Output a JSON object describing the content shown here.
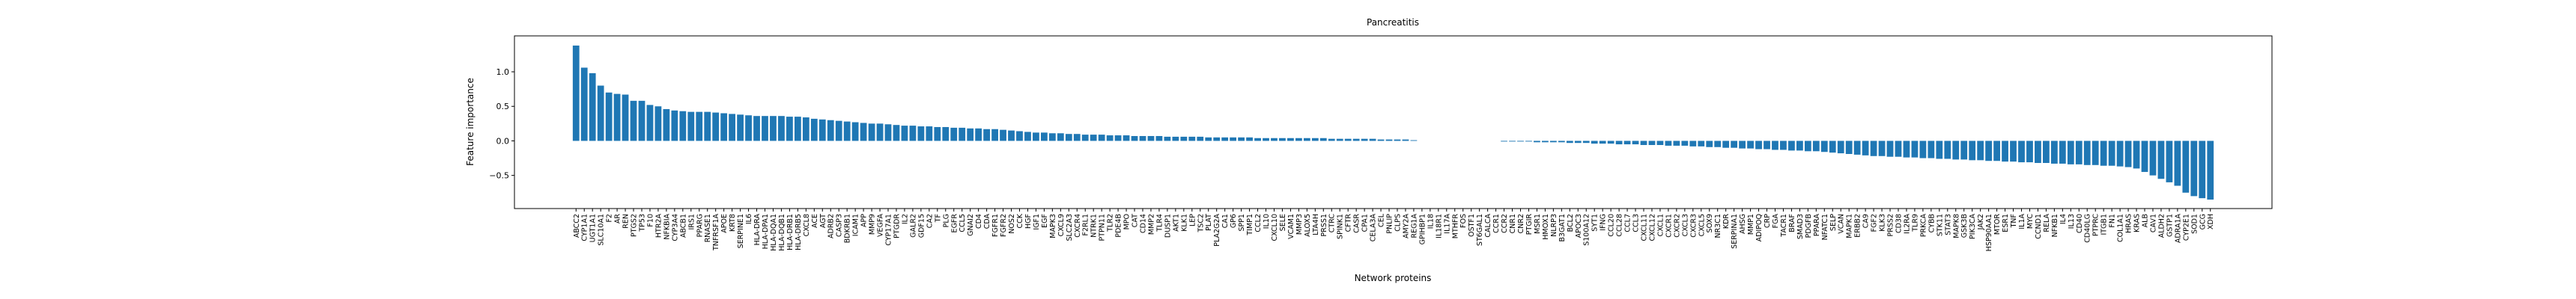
{
  "chart_data": {
    "type": "bar",
    "title": "Pancreatitis",
    "xlabel": "Network proteins",
    "ylabel": "Feature importance",
    "color": "#1f77b4",
    "categories": [
      "ABCC2",
      "CYP1A1",
      "UGT1A1",
      "SLC10A1",
      "F2",
      "AR",
      "REN",
      "PTGS2",
      "TP53",
      "F10",
      "HTR2A",
      "NFKBIA",
      "CYP3A4",
      "ABCB1",
      "IRS1",
      "PPARG",
      "RNASE1",
      "TNFRSF1A",
      "APOE",
      "KRT8",
      "SERPINE1",
      "IL6",
      "HLA-DRA",
      "HLA-DPA1",
      "HLA-DQA1",
      "HLA-DQB1",
      "HLA-DRB1",
      "HLA-DRB5",
      "CXCL8",
      "ACE",
      "AGT",
      "ADRB2",
      "CASP3",
      "BDKRB1",
      "ICAM1",
      "APP",
      "MMP9",
      "VEGFA",
      "CYP17A1",
      "PTGDR",
      "IL2",
      "GALR2",
      "GDF15",
      "CA2",
      "TF",
      "PLG",
      "EGFR",
      "CCL5",
      "GNAI2",
      "CD4",
      "CDA",
      "FGFR1",
      "FGFR2",
      "NOS2",
      "CCK",
      "HGF",
      "IGF1",
      "EGF",
      "MAPK3",
      "CXCL9",
      "SLC2A3",
      "CXCR4",
      "F2RL1",
      "NTRK1",
      "PTPN11",
      "TLR2",
      "PDE4B",
      "MPO",
      "CAT",
      "CD14",
      "MMP2",
      "TLR4",
      "DUSP1",
      "AKT1",
      "KLK1",
      "LEP",
      "TSC2",
      "PLAT",
      "PLA2G2A",
      "CA1",
      "GP6",
      "SPP1",
      "TIMP1",
      "CCL2",
      "IL10",
      "CXCL10",
      "SELE",
      "VCAM1",
      "MMP3",
      "ALOX5",
      "LTA4H",
      "PRSS1",
      "CTRC",
      "SPINK1",
      "CFTR",
      "CASR",
      "CPA1",
      "CELA3A",
      "CEL",
      "PNLIP",
      "CLPS",
      "AMY2A",
      "REG1A",
      "GPIHBP1",
      "IL18",
      "IL18R1",
      "IL17A",
      "MTHFR",
      "FOS",
      "OSTF1",
      "ST6GAL1",
      "CALCA",
      "CCR1",
      "CCR2",
      "CNR1",
      "CNR2",
      "PTGIR",
      "MSR1",
      "HMOX1",
      "NLRP3",
      "B3GAT1",
      "BCL2",
      "APOC3",
      "S100A12",
      "SYT1",
      "IFNG",
      "CCL20",
      "CCL28",
      "CCL7",
      "CCL3",
      "CXCL11",
      "CXCL12",
      "CXCL1",
      "CXCR1",
      "CXCR2",
      "CXCL3",
      "CXCR3",
      "CXCL5",
      "SOX9",
      "NR3C1",
      "KDR",
      "SERPINA1",
      "AHSG",
      "MMP1",
      "ADIPOQ",
      "CRP",
      "FGA",
      "TACR1",
      "BRAF",
      "SMAD3",
      "PDGFB",
      "PPARA",
      "NFATC1",
      "SELP",
      "VCAN",
      "MAPK1",
      "ERBB2",
      "CA9",
      "FGF2",
      "KLK3",
      "PRSS2",
      "CD38",
      "IL2RA",
      "TLR9",
      "PRKCA",
      "CYBB",
      "STK11",
      "STAT3",
      "MAPK8",
      "GSK3B",
      "PIK3CA",
      "JAK2",
      "HSP90AA1",
      "MTOR",
      "ESR1",
      "TNF",
      "IL1A",
      "MYC",
      "CCND1",
      "RELA",
      "NFKB1",
      "IL4",
      "IL13",
      "CD40",
      "CD40LG",
      "PTPRC",
      "ITGB1",
      "FN1",
      "COL1A1",
      "HRAS",
      "KRAS",
      "ALB",
      "CAV1",
      "ALDH2",
      "GSTP1",
      "ADRA1A",
      "CYP2E1",
      "SOD1",
      "GCG",
      "XDH"
    ],
    "values": [
      1.38,
      1.06,
      0.98,
      0.8,
      0.7,
      0.68,
      0.67,
      0.58,
      0.58,
      0.52,
      0.5,
      0.46,
      0.44,
      0.43,
      0.42,
      0.42,
      0.42,
      0.41,
      0.4,
      0.39,
      0.38,
      0.37,
      0.36,
      0.36,
      0.36,
      0.36,
      0.35,
      0.35,
      0.34,
      0.32,
      0.31,
      0.3,
      0.29,
      0.28,
      0.27,
      0.26,
      0.25,
      0.25,
      0.24,
      0.23,
      0.22,
      0.22,
      0.21,
      0.21,
      0.2,
      0.2,
      0.19,
      0.19,
      0.18,
      0.18,
      0.17,
      0.17,
      0.16,
      0.15,
      0.14,
      0.13,
      0.12,
      0.12,
      0.11,
      0.11,
      0.1,
      0.1,
      0.09,
      0.09,
      0.09,
      0.08,
      0.08,
      0.08,
      0.07,
      0.07,
      0.07,
      0.07,
      0.06,
      0.06,
      0.06,
      0.06,
      0.06,
      0.05,
      0.05,
      0.05,
      0.05,
      0.05,
      0.05,
      0.04,
      0.04,
      0.04,
      0.04,
      0.04,
      0.04,
      0.04,
      0.04,
      0.04,
      0.03,
      0.03,
      0.03,
      0.03,
      0.03,
      0.03,
      0.02,
      0.02,
      0.02,
      0.02,
      0.01,
      0,
      0,
      0,
      0,
      0,
      0,
      0,
      0,
      0,
      0,
      -0.01,
      -0.01,
      -0.01,
      -0.01,
      -0.02,
      -0.02,
      -0.02,
      -0.02,
      -0.03,
      -0.03,
      -0.03,
      -0.04,
      -0.04,
      -0.04,
      -0.05,
      -0.05,
      -0.05,
      -0.06,
      -0.06,
      -0.06,
      -0.07,
      -0.07,
      -0.07,
      -0.08,
      -0.08,
      -0.09,
      -0.09,
      -0.1,
      -0.1,
      -0.11,
      -0.11,
      -0.12,
      -0.12,
      -0.13,
      -0.13,
      -0.14,
      -0.14,
      -0.15,
      -0.15,
      -0.16,
      -0.17,
      -0.18,
      -0.19,
      -0.2,
      -0.21,
      -0.22,
      -0.22,
      -0.23,
      -0.23,
      -0.24,
      -0.24,
      -0.25,
      -0.25,
      -0.26,
      -0.26,
      -0.27,
      -0.27,
      -0.28,
      -0.28,
      -0.29,
      -0.29,
      -0.3,
      -0.3,
      -0.31,
      -0.31,
      -0.32,
      -0.32,
      -0.33,
      -0.33,
      -0.34,
      -0.34,
      -0.35,
      -0.35,
      -0.36,
      -0.36,
      -0.37,
      -0.38,
      -0.4,
      -0.45,
      -0.5,
      -0.55,
      -0.6,
      -0.65,
      -0.75,
      -0.8,
      -0.83,
      -0.85
    ],
    "ylim": [
      -0.98,
      1.52
    ],
    "yticks": [
      {
        "value": -0.5,
        "label": "−0.5"
      },
      {
        "value": 0.0,
        "label": "0.0"
      },
      {
        "value": 0.5,
        "label": "0.5"
      },
      {
        "value": 1.0,
        "label": "1.0"
      }
    ]
  }
}
